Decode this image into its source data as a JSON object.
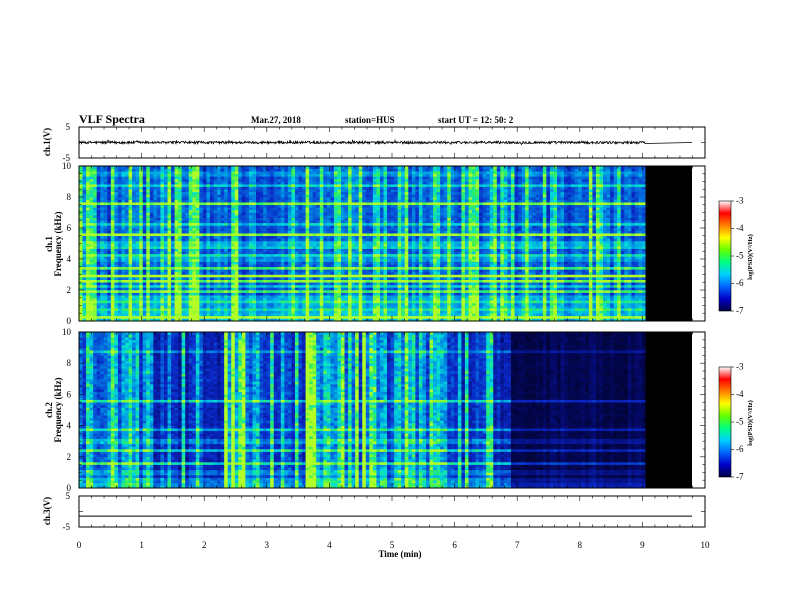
{
  "header": {
    "title": "VLF Spectra",
    "date": "Mar.27, 2018",
    "station": "station=HUS",
    "start": "start UT =  12: 50: 2"
  },
  "colors": {
    "background_black": "#000000",
    "spectrogram_dark_blue": "#0a1a8c",
    "spectrogram_cyan": "#00e6e6",
    "spectrogram_green": "#3cf03c",
    "waveform": "#000000"
  },
  "colorbar": {
    "label": "log(PSD)(V²/Hz)",
    "ticks": [
      "-3",
      "-4",
      "-5",
      "-6",
      "-7"
    ],
    "range": [
      -7,
      -3
    ],
    "colormap": [
      "#000040",
      "#0000c8",
      "#0064ff",
      "#00d2ff",
      "#00ff80",
      "#64ff00",
      "#ffff00",
      "#ff8000",
      "#ff0000",
      "#ffffff"
    ]
  },
  "x_axis": {
    "label": "Time (min)",
    "ticks": [
      "0",
      "1",
      "2",
      "3",
      "4",
      "5",
      "6",
      "7",
      "8",
      "9",
      "10"
    ],
    "range": [
      0,
      10
    ],
    "data_end": 9.05
  },
  "chart_data": [
    {
      "type": "line",
      "panel": "ch.1 waveform",
      "ylabel": "ch.1(V)",
      "y_ticks": [
        "5",
        "0",
        "-5"
      ],
      "ylim": [
        -5,
        5
      ],
      "description_values": {
        "mean": 0,
        "noise_amplitude": 0.4,
        "flat_after_min": 9.05
      }
    },
    {
      "type": "heatmap",
      "panel": "ch.1 spectrogram",
      "xlabel": "Time (min)",
      "ylabel": "Frequency (kHz)",
      "ylabel_prefix": "ch.1",
      "y_ticks": [
        "10",
        "8",
        "6",
        "4",
        "2",
        "0"
      ],
      "ylim": [
        0,
        10
      ],
      "xlim": [
        0,
        10
      ],
      "data_end_min": 9.05,
      "strong_bands_khz": [
        0.3,
        0.5,
        0.8,
        1.0,
        1.2,
        1.5,
        1.9,
        2.3,
        2.6,
        2.9,
        3.4,
        4.0,
        4.3,
        4.7,
        5.0,
        5.6,
        6.3,
        7.6,
        8.8,
        9.5
      ],
      "band_intensity": [
        0.9,
        0.8,
        0.7,
        0.6,
        0.7,
        0.7,
        0.6,
        0.5,
        0.7,
        0.9,
        0.6,
        0.5,
        0.6,
        0.5,
        0.7,
        0.8,
        0.5,
        0.7,
        0.5,
        0.4
      ],
      "log_psd_range": [
        -7,
        -3
      ]
    },
    {
      "type": "heatmap",
      "panel": "ch.2 spectrogram",
      "xlabel": "Time (min)",
      "ylabel": "Frequency (kHz)",
      "ylabel_prefix": "ch.2",
      "y_ticks": [
        "10",
        "8",
        "6",
        "4",
        "2",
        "0"
      ],
      "ylim": [
        0,
        10
      ],
      "xlim": [
        0,
        10
      ],
      "data_end_min": 9.05,
      "activity_drop_min": 6.9,
      "strong_bands_khz": [
        0.5,
        1.0,
        1.6,
        2.4,
        3.0,
        3.8,
        5.6,
        8.8
      ],
      "band_intensity": [
        0.7,
        0.6,
        0.6,
        0.5,
        0.7,
        0.6,
        0.5,
        0.4
      ],
      "log_psd_range": [
        -7,
        -3
      ]
    },
    {
      "type": "line",
      "panel": "ch.3 waveform",
      "ylabel": "ch.3(V)",
      "y_ticks": [
        "5",
        "0",
        "-5"
      ],
      "ylim": [
        -5,
        5
      ],
      "description_values": {
        "constant": -1.5,
        "flat": true
      }
    }
  ]
}
